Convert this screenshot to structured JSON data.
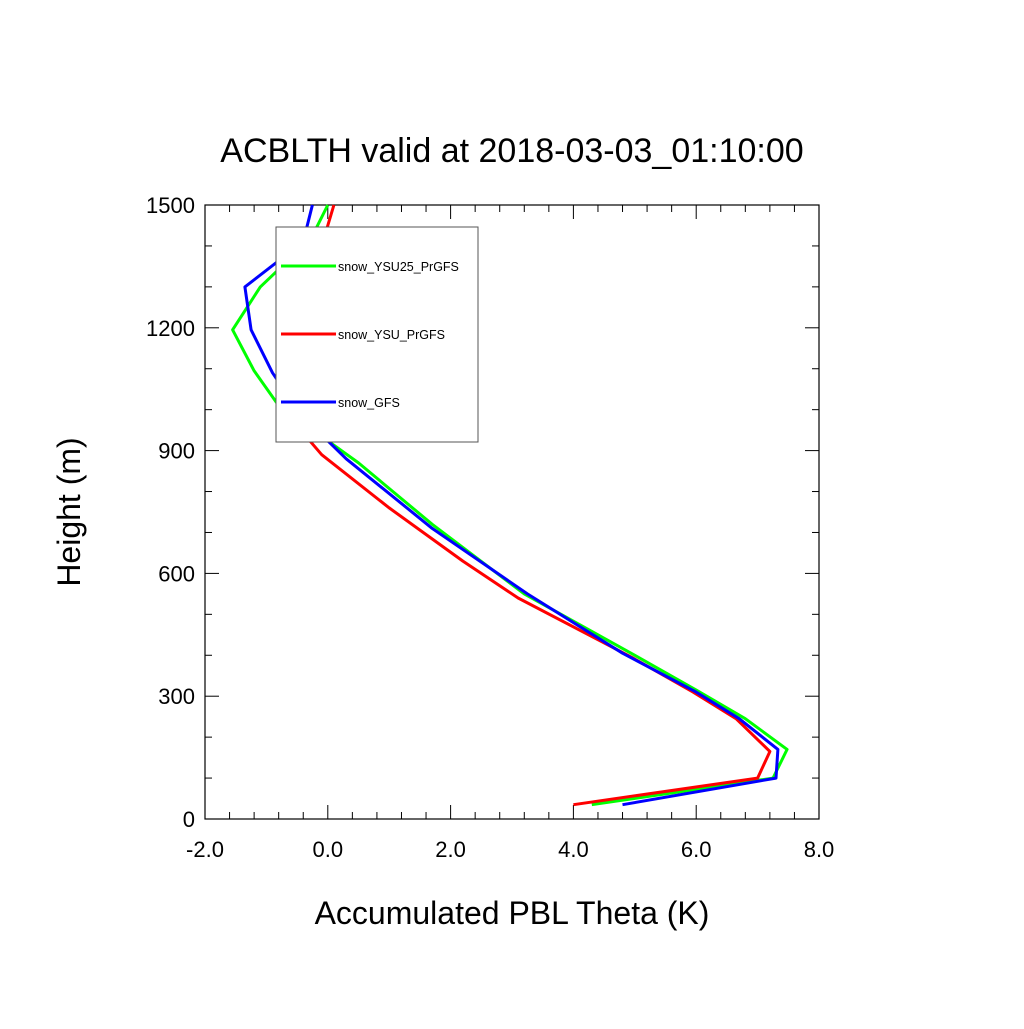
{
  "chart_data": {
    "type": "line",
    "title": "ACBLTH valid at 2018-03-03_01:10:00",
    "xlabel": "Accumulated PBL Theta (K)",
    "ylabel": "Height (m)",
    "xlim": [
      -2.0,
      8.0
    ],
    "ylim": [
      0,
      1500
    ],
    "xticks": [
      -2.0,
      0.0,
      2.0,
      4.0,
      6.0,
      8.0
    ],
    "xtick_labels": [
      "-2.0",
      "0.0",
      "2.0",
      "4.0",
      "6.0",
      "8.0"
    ],
    "yticks": [
      0,
      300,
      600,
      900,
      1200,
      1500
    ],
    "ytick_labels": [
      "0",
      "300",
      "600",
      "900",
      "1200",
      "1500"
    ],
    "grid": false,
    "legend_position": "top-left",
    "series": [
      {
        "name": "snow_YSU25_PrGFS",
        "color": "#00ff00",
        "x": [
          4.3,
          7.25,
          7.48,
          6.8,
          6.0,
          5.0,
          3.2,
          1.7,
          0.5,
          -0.8,
          -1.2,
          -1.55,
          -1.1,
          -0.75,
          -0.3,
          0.0
        ],
        "y": [
          35,
          100,
          170,
          245,
          315,
          400,
          550,
          720,
          870,
          1010,
          1095,
          1195,
          1300,
          1350,
          1410,
          1500
        ]
      },
      {
        "name": "snow_YSU_PrGFS",
        "color": "#ff0000",
        "x": [
          4.0,
          7.0,
          7.2,
          6.65,
          5.95,
          4.95,
          3.1,
          2.2,
          1.0,
          -0.1,
          -0.7,
          -0.7,
          -0.65,
          -0.55,
          -0.3,
          -0.1,
          0.1
        ],
        "y": [
          35,
          100,
          165,
          245,
          310,
          395,
          540,
          630,
          760,
          890,
          995,
          1000,
          1090,
          1180,
          1300,
          1400,
          1500
        ]
      },
      {
        "name": "snow_GFS",
        "color": "#0000ff",
        "x": [
          4.8,
          7.3,
          7.33,
          6.7,
          6.0,
          4.8,
          3.25,
          1.7,
          0.3,
          -0.45,
          -0.9,
          -1.25,
          -1.35,
          -0.4,
          -0.25
        ],
        "y": [
          35,
          100,
          170,
          245,
          310,
          405,
          550,
          710,
          880,
          990,
          1090,
          1195,
          1300,
          1410,
          1500
        ]
      }
    ]
  }
}
